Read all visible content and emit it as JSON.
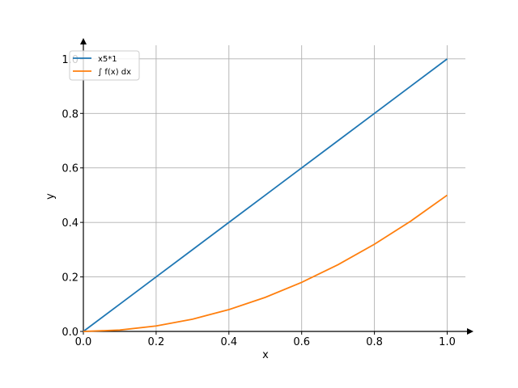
{
  "chart_data": {
    "type": "line",
    "xlabel": "x",
    "ylabel": "y",
    "xlim": [
      0,
      1.05
    ],
    "ylim": [
      0,
      1.05
    ],
    "x_ticks": [
      0,
      0.2,
      0.4,
      0.6,
      0.8,
      1.0
    ],
    "x_tick_labels": [
      "0.0",
      "0.2",
      "0.4",
      "0.6",
      "0.8",
      "1.0"
    ],
    "y_ticks": [
      0,
      0.2,
      0.4,
      0.6,
      0.8,
      1.0
    ],
    "y_tick_labels": [
      "0.0",
      "0.2",
      "0.4",
      "0.6",
      "0.8",
      "1.0"
    ],
    "grid": true,
    "legend_position": "top-left",
    "series": [
      {
        "name": "x5*1",
        "color": "#1f77b4",
        "x": [
          0,
          0.1,
          0.2,
          0.3,
          0.4,
          0.5,
          0.6,
          0.7,
          0.8,
          0.9,
          1.0
        ],
        "y": [
          0,
          0.1,
          0.2,
          0.3,
          0.4,
          0.5,
          0.6,
          0.7,
          0.8,
          0.9,
          1.0
        ]
      },
      {
        "name": "∫ f(x) dx",
        "color": "#ff7f0e",
        "x": [
          0,
          0.1,
          0.2,
          0.3,
          0.4,
          0.5,
          0.6,
          0.7,
          0.8,
          0.9,
          1.0
        ],
        "y": [
          0,
          0.005,
          0.02,
          0.045,
          0.08,
          0.125,
          0.18,
          0.245,
          0.32,
          0.405,
          0.5
        ]
      }
    ]
  }
}
